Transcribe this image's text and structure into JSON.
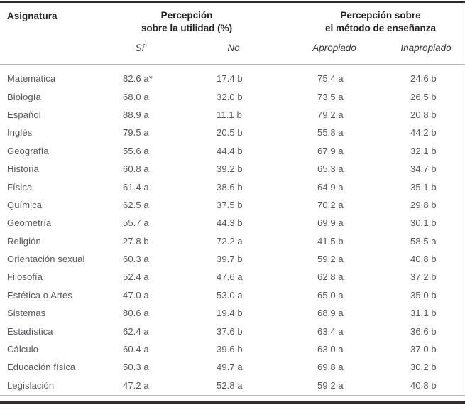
{
  "table": {
    "columns": {
      "subject_header": "Asignatura",
      "group_utility": {
        "line1": "Percepción",
        "line2": "sobre la utilidad (%)",
        "sub_si": "Sí",
        "sub_no": "No"
      },
      "group_method": {
        "line1": "Percepción sobre",
        "line2": "el método de enseñanza",
        "sub_apropiado": "Apropiado",
        "sub_inapropiado": "Inapropiado"
      }
    },
    "rows": [
      {
        "subject": "Matemática",
        "si": "82.6 a*",
        "no": "17.4 b",
        "apropiado": "75.4 a",
        "inapropiado": "24.6 b"
      },
      {
        "subject": "Biología",
        "si": "68.0 a",
        "no": "32.0 b",
        "apropiado": "73.5 a",
        "inapropiado": "26.5 b"
      },
      {
        "subject": "Español",
        "si": "88.9 a",
        "no": "11.1 b",
        "apropiado": "79.2 a",
        "inapropiado": "20.8 b"
      },
      {
        "subject": "Inglés",
        "si": "79.5 a",
        "no": "20.5 b",
        "apropiado": "55.8 a",
        "inapropiado": "44.2 b"
      },
      {
        "subject": "Geografía",
        "si": "55.6 a",
        "no": "44.4 b",
        "apropiado": "67.9 a",
        "inapropiado": "32.1 b"
      },
      {
        "subject": "Historia",
        "si": "60.8 a",
        "no": "39.2 b",
        "apropiado": "65.3 a",
        "inapropiado": "34.7 b"
      },
      {
        "subject": "Física",
        "si": "61.4 a",
        "no": "38.6 b",
        "apropiado": "64.9 a",
        "inapropiado": "35.1 b"
      },
      {
        "subject": "Química",
        "si": "62.5 a",
        "no": "37.5 b",
        "apropiado": "70.2 a",
        "inapropiado": "29.8 b"
      },
      {
        "subject": "Geometría",
        "si": "55.7 a",
        "no": "44.3 b",
        "apropiado": "69.9 a",
        "inapropiado": "30.1 b"
      },
      {
        "subject": "Religión",
        "si": "27.8 b",
        "no": "72.2 a",
        "apropiado": "41.5 b",
        "inapropiado": "58.5 a"
      },
      {
        "subject": "Orientación sexual",
        "si": "60.3 a",
        "no": "39.7 b",
        "apropiado": "59.2 a",
        "inapropiado": "40.8 b"
      },
      {
        "subject": "Filosofía",
        "si": "52.4 a",
        "no": "47.6 a",
        "apropiado": "62.8 a",
        "inapropiado": "37.2 b"
      },
      {
        "subject": "Estética o Artes",
        "si": "47.0 a",
        "no": "53.0 a",
        "apropiado": "65.0 a",
        "inapropiado": "35.0 b"
      },
      {
        "subject": "Sistemas",
        "si": "80.6 a",
        "no": "19.4 b",
        "apropiado": "68.9 a",
        "inapropiado": "31.1 b"
      },
      {
        "subject": "Estadística",
        "si": "62.4 a",
        "no": "37.6 b",
        "apropiado": "63.4 a",
        "inapropiado": "36.6 b"
      },
      {
        "subject": "Cálculo",
        "si": "60.4 a",
        "no": "39.6 b",
        "apropiado": "63.0 a",
        "inapropiado": "37.0 b"
      },
      {
        "subject": "Educación física",
        "si": "50.3 a",
        "no": "49.7 a",
        "apropiado": "69.8 a",
        "inapropiado": "30.2 b"
      },
      {
        "subject": "Legislación",
        "si": "47.2 a",
        "no": "52.8 a",
        "apropiado": "59.2 a",
        "inapropiado": "40.8 b"
      }
    ]
  },
  "colors": {
    "rule_thick": "#2d292b",
    "rule_thin": "#b3b3b3",
    "header_text": "#262223",
    "body_text": "#54565a",
    "background": "#ffffff"
  }
}
